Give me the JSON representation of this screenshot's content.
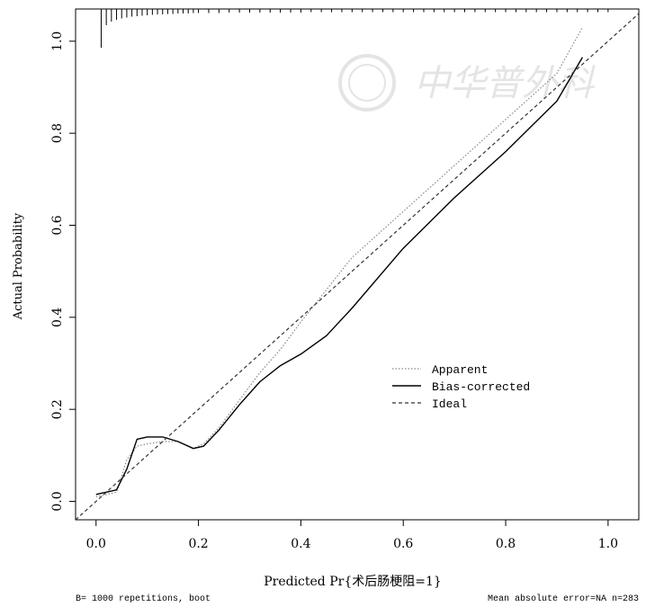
{
  "chart_data": {
    "type": "line",
    "title": "",
    "xlabel": "Predicted Pr{术后肠梗阻=1}",
    "ylabel": "Actual Probability",
    "xlim": [
      -0.04,
      1.06
    ],
    "ylim": [
      -0.04,
      1.07
    ],
    "x_ticks": [
      {
        "value": 0.0,
        "label": "0.0"
      },
      {
        "value": 0.2,
        "label": "0.2"
      },
      {
        "value": 0.4,
        "label": "0.4"
      },
      {
        "value": 0.6,
        "label": "0.6"
      },
      {
        "value": 0.8,
        "label": "0.8"
      },
      {
        "value": 1.0,
        "label": "1.0"
      }
    ],
    "y_ticks": [
      {
        "value": 0.0,
        "label": "0.0"
      },
      {
        "value": 0.2,
        "label": "0.2"
      },
      {
        "value": 0.4,
        "label": "0.4"
      },
      {
        "value": 0.6,
        "label": "0.6"
      },
      {
        "value": 0.8,
        "label": "0.8"
      },
      {
        "value": 1.0,
        "label": "1.0"
      }
    ],
    "grid": false,
    "legend_position": "bottom-right",
    "series": [
      {
        "name": "Apparent",
        "style": "dotted",
        "x": [
          0.0,
          0.02,
          0.04,
          0.06,
          0.08,
          0.1,
          0.13,
          0.16,
          0.19,
          0.21,
          0.24,
          0.28,
          0.32,
          0.36,
          0.4,
          0.45,
          0.5,
          0.6,
          0.7,
          0.8,
          0.9,
          0.95
        ],
        "y": [
          0.01,
          0.015,
          0.02,
          0.09,
          0.12,
          0.125,
          0.13,
          0.13,
          0.115,
          0.125,
          0.16,
          0.22,
          0.28,
          0.33,
          0.39,
          0.46,
          0.53,
          0.63,
          0.73,
          0.83,
          0.93,
          1.03
        ]
      },
      {
        "name": "Bias-corrected",
        "style": "solid",
        "x": [
          0.0,
          0.02,
          0.04,
          0.06,
          0.08,
          0.1,
          0.13,
          0.16,
          0.19,
          0.21,
          0.24,
          0.28,
          0.32,
          0.36,
          0.4,
          0.45,
          0.5,
          0.6,
          0.7,
          0.8,
          0.9,
          0.95
        ],
        "y": [
          0.015,
          0.02,
          0.025,
          0.07,
          0.135,
          0.14,
          0.14,
          0.13,
          0.115,
          0.12,
          0.155,
          0.21,
          0.26,
          0.295,
          0.32,
          0.36,
          0.42,
          0.55,
          0.66,
          0.76,
          0.87,
          0.965
        ]
      },
      {
        "name": "Ideal",
        "style": "dashed",
        "x": [
          -0.04,
          1.06
        ],
        "y": [
          -0.04,
          1.06
        ]
      }
    ],
    "rug": {
      "y_base": 1.07,
      "values": [
        0.01,
        0.02,
        0.03,
        0.04,
        0.05,
        0.06,
        0.07,
        0.08,
        0.09,
        0.1,
        0.11,
        0.12,
        0.13,
        0.14,
        0.15,
        0.16,
        0.17,
        0.18,
        0.19,
        0.2,
        0.22,
        0.24,
        0.26,
        0.28,
        0.3,
        0.32,
        0.34,
        0.36,
        0.38,
        0.4,
        0.42,
        0.44,
        0.46,
        0.48,
        0.5,
        0.52,
        0.54,
        0.56,
        0.58,
        0.6,
        0.62,
        0.64,
        0.66,
        0.68,
        0.7,
        0.72,
        0.74,
        0.76,
        0.78,
        0.8,
        0.82,
        0.84,
        0.86,
        0.88,
        0.9,
        0.92,
        0.94,
        0.96,
        0.98,
        1.0
      ],
      "counts": [
        80,
        30,
        22,
        18,
        15,
        13,
        11,
        10,
        9,
        8,
        7,
        6,
        6,
        5,
        5,
        4,
        4,
        4,
        3,
        3,
        3,
        3,
        2,
        2,
        2,
        2,
        2,
        2,
        2,
        2,
        1,
        1,
        1,
        1,
        1,
        1,
        1,
        1,
        1,
        1,
        1,
        1,
        1,
        1,
        1,
        1,
        1,
        1,
        1,
        1,
        1,
        1,
        1,
        1,
        1,
        1,
        1,
        1,
        1,
        1
      ]
    },
    "footer_left": "B= 1000 repetitions, boot",
    "footer_right": "Mean absolute error=NA n=283",
    "watermark_text": "中华普外科"
  },
  "colors": {
    "apparent": "#888888",
    "bias_corrected": "#000000",
    "ideal": "#333333",
    "watermark": "#cfcfcf"
  }
}
